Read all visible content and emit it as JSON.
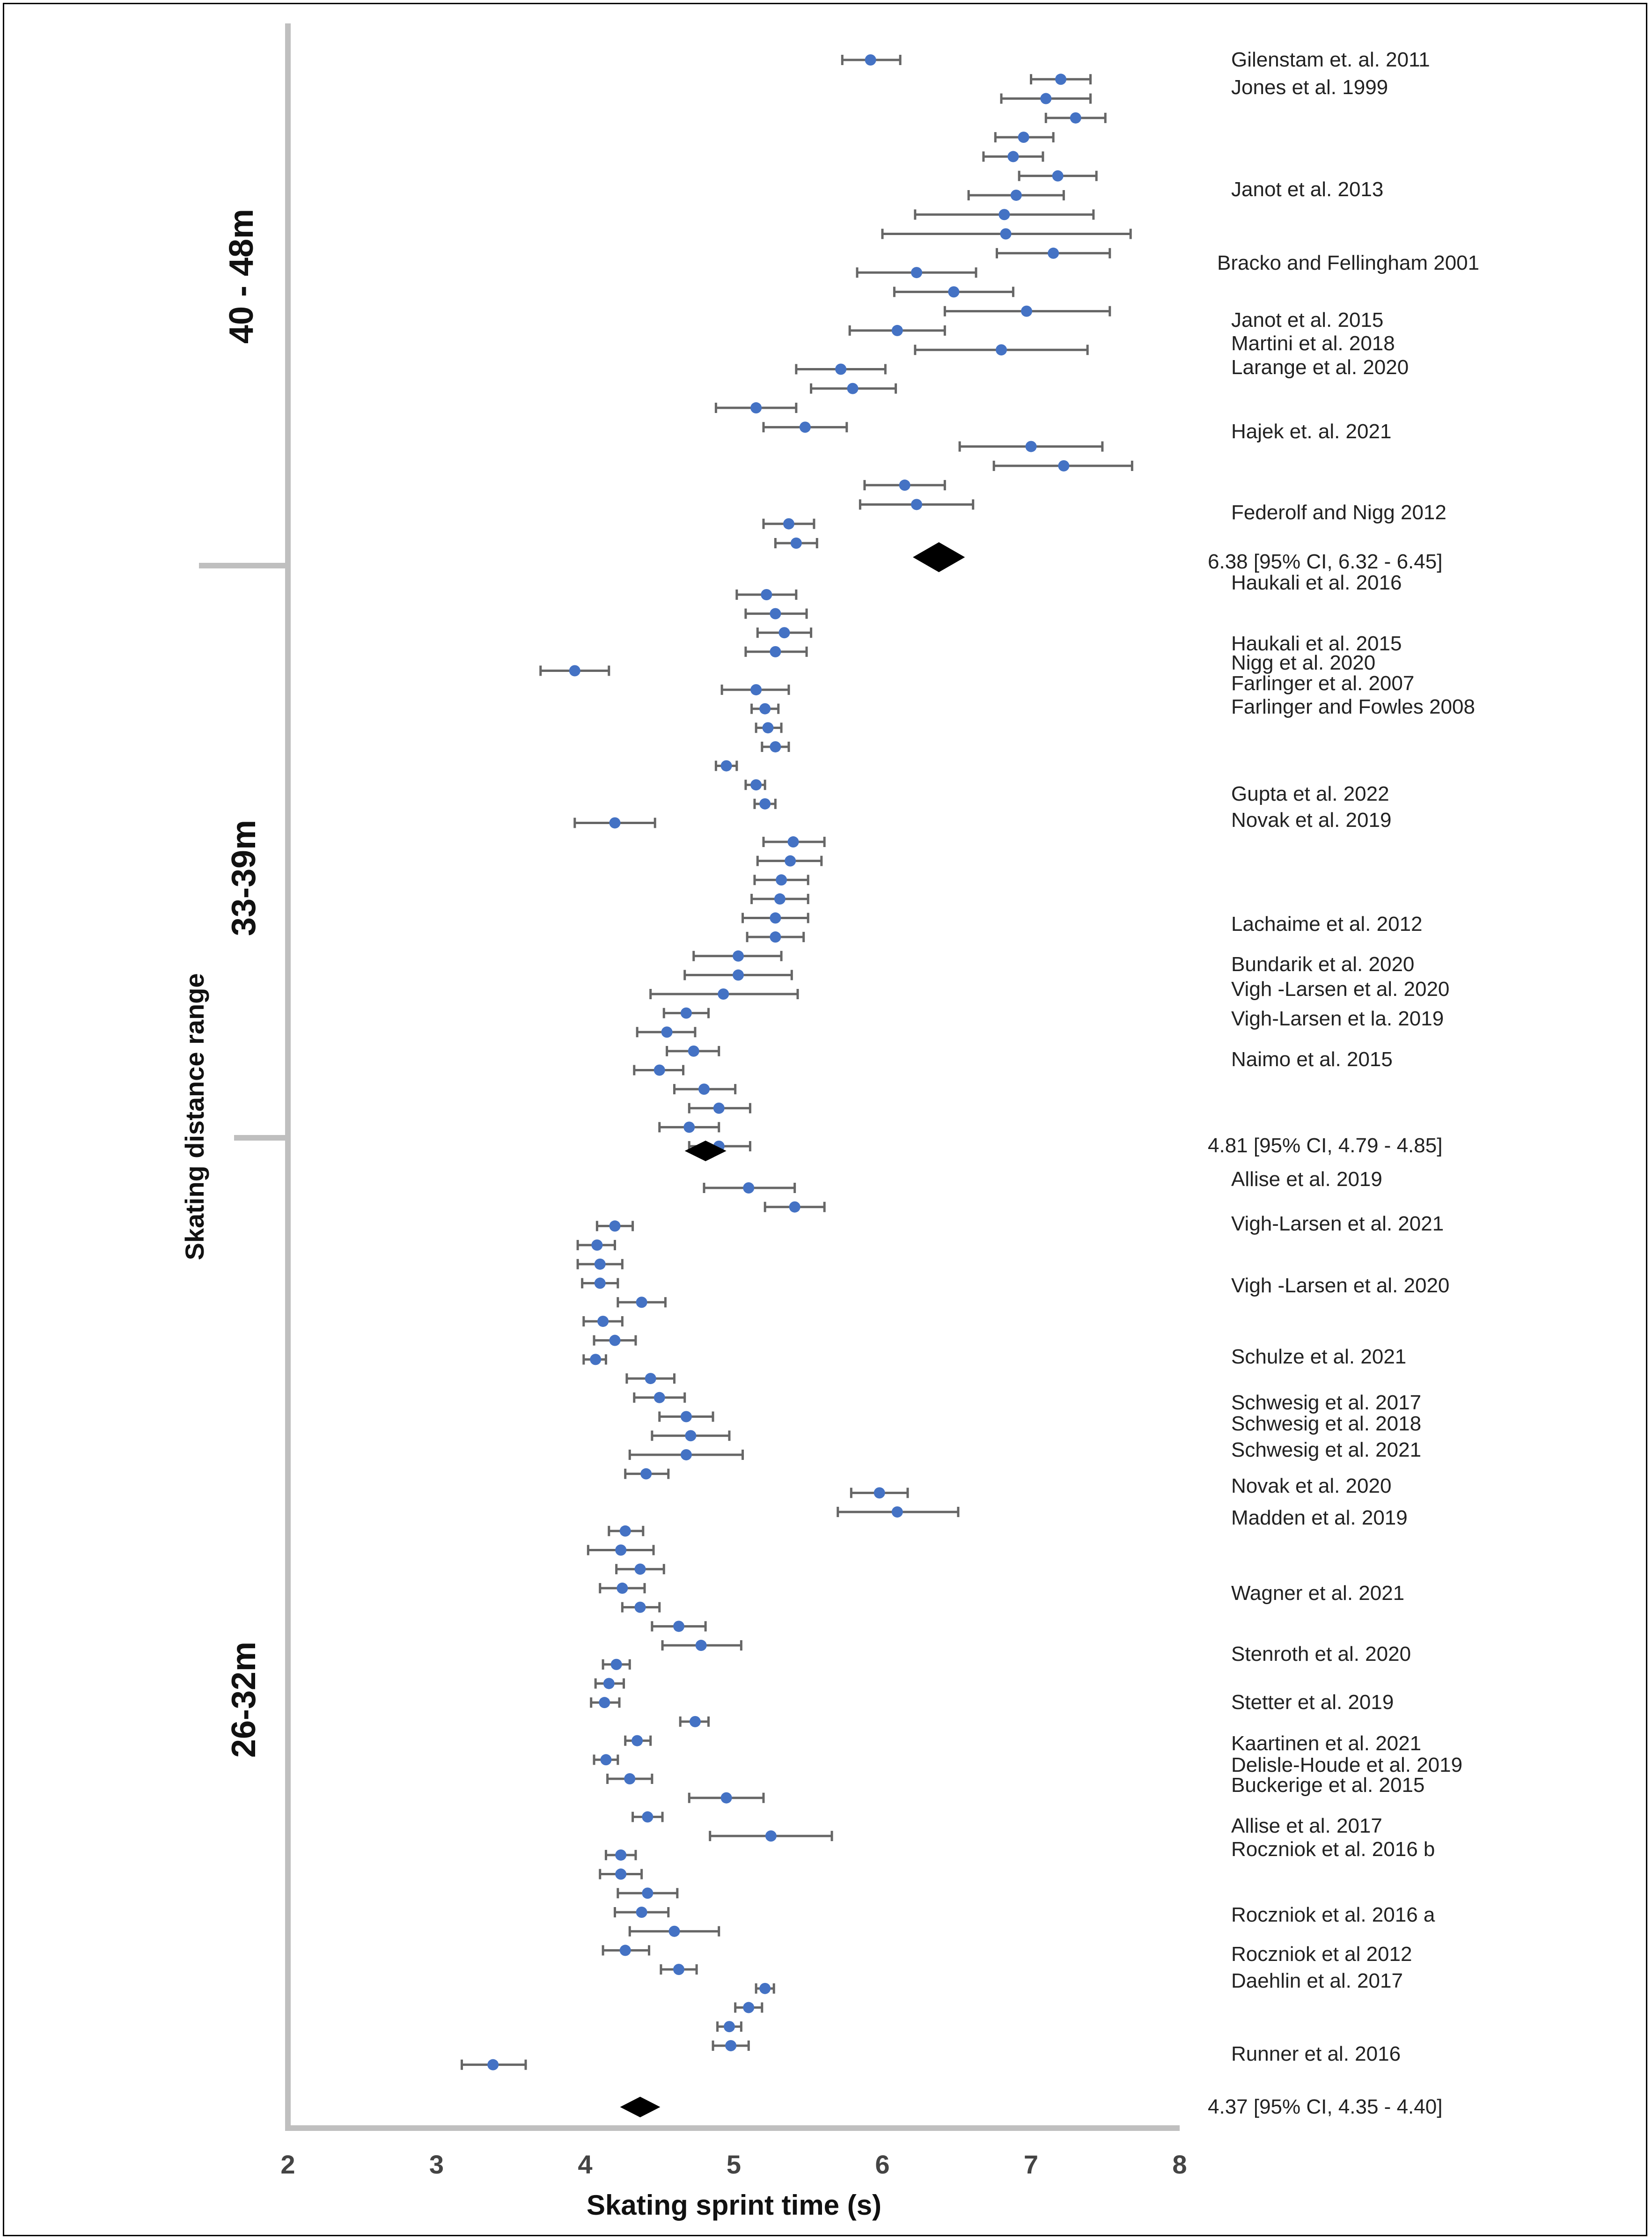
{
  "chart_data": {
    "type": "forest",
    "xlabel": "Skating sprint time (s)",
    "ylabel": "Skating distance range",
    "xlim": [
      2,
      8
    ],
    "x_ticks": [
      "2",
      "3",
      "4",
      "5",
      "6",
      "7",
      "8"
    ],
    "groups": [
      {
        "name": "40 - 48m",
        "points": [
          {
            "est": 5.92,
            "lo": 5.73,
            "hi": 6.12
          },
          {
            "est": 7.2,
            "lo": 7.0,
            "hi": 7.4
          },
          {
            "est": 7.1,
            "lo": 6.8,
            "hi": 7.4
          },
          {
            "est": 7.3,
            "lo": 7.1,
            "hi": 7.5
          },
          {
            "est": 6.95,
            "lo": 6.76,
            "hi": 7.15
          },
          {
            "est": 6.88,
            "lo": 6.68,
            "hi": 7.08
          },
          {
            "est": 7.18,
            "lo": 6.92,
            "hi": 7.44
          },
          {
            "est": 6.9,
            "lo": 6.58,
            "hi": 7.22
          },
          {
            "est": 6.82,
            "lo": 6.22,
            "hi": 7.42
          },
          {
            "est": 6.83,
            "lo": 6.0,
            "hi": 7.67
          },
          {
            "est": 7.15,
            "lo": 6.77,
            "hi": 7.53
          },
          {
            "est": 6.23,
            "lo": 5.83,
            "hi": 6.63
          },
          {
            "est": 6.48,
            "lo": 6.08,
            "hi": 6.88
          },
          {
            "est": 6.97,
            "lo": 6.42,
            "hi": 7.53
          },
          {
            "est": 6.1,
            "lo": 5.78,
            "hi": 6.42
          },
          {
            "est": 6.8,
            "lo": 6.22,
            "hi": 7.38
          },
          {
            "est": 5.72,
            "lo": 5.42,
            "hi": 6.02
          },
          {
            "est": 5.8,
            "lo": 5.52,
            "hi": 6.09
          },
          {
            "est": 5.15,
            "lo": 4.88,
            "hi": 5.42
          },
          {
            "est": 5.48,
            "lo": 5.2,
            "hi": 5.76
          },
          {
            "est": 7.0,
            "lo": 6.52,
            "hi": 7.48
          },
          {
            "est": 7.22,
            "lo": 6.75,
            "hi": 7.68
          },
          {
            "est": 6.15,
            "lo": 5.88,
            "hi": 6.42
          },
          {
            "est": 6.23,
            "lo": 5.85,
            "hi": 6.61
          },
          {
            "est": 5.37,
            "lo": 5.2,
            "hi": 5.54
          },
          {
            "est": 5.42,
            "lo": 5.28,
            "hi": 5.56
          }
        ],
        "pooled": {
          "est": 6.38,
          "lo": 6.32,
          "hi": 6.45,
          "label": "6.38 [95% CI, 6.32 - 6.45]"
        },
        "studies": [
          "Gilenstam et. al. 2011",
          "Jones et  al. 1999",
          "Janot et  al. 2013",
          "Bracko and Fellingham 2001",
          "Janot et  al. 2015",
          "Martini et  al. 2018",
          "Larange et  al. 2020",
          "Hajek et. al. 2021",
          "Federolf and Nigg 2012"
        ]
      },
      {
        "name": "33-39m",
        "points": [
          {
            "est": 5.22,
            "lo": 5.02,
            "hi": 5.42
          },
          {
            "est": 5.28,
            "lo": 5.08,
            "hi": 5.49
          },
          {
            "est": 5.34,
            "lo": 5.16,
            "hi": 5.52
          },
          {
            "est": 5.28,
            "lo": 5.08,
            "hi": 5.49
          },
          {
            "est": 3.93,
            "lo": 3.7,
            "hi": 4.16
          },
          {
            "est": 5.15,
            "lo": 4.92,
            "hi": 5.37
          },
          {
            "est": 5.21,
            "lo": 5.12,
            "hi": 5.3
          },
          {
            "est": 5.23,
            "lo": 5.15,
            "hi": 5.32
          },
          {
            "est": 5.28,
            "lo": 5.19,
            "hi": 5.37
          },
          {
            "est": 4.95,
            "lo": 4.88,
            "hi": 5.02
          },
          {
            "est": 5.15,
            "lo": 5.08,
            "hi": 5.21
          },
          {
            "est": 5.21,
            "lo": 5.14,
            "hi": 5.28
          },
          {
            "est": 4.2,
            "lo": 3.93,
            "hi": 4.47
          },
          {
            "est": 5.4,
            "lo": 5.2,
            "hi": 5.61
          },
          {
            "est": 5.38,
            "lo": 5.16,
            "hi": 5.59
          },
          {
            "est": 5.32,
            "lo": 5.14,
            "hi": 5.5
          },
          {
            "est": 5.31,
            "lo": 5.12,
            "hi": 5.5
          },
          {
            "est": 5.28,
            "lo": 5.06,
            "hi": 5.5
          },
          {
            "est": 5.28,
            "lo": 5.09,
            "hi": 5.47
          },
          {
            "est": 5.03,
            "lo": 4.73,
            "hi": 5.32
          },
          {
            "est": 5.03,
            "lo": 4.67,
            "hi": 5.39
          },
          {
            "est": 4.93,
            "lo": 4.44,
            "hi": 5.43
          },
          {
            "est": 4.68,
            "lo": 4.53,
            "hi": 4.83
          },
          {
            "est": 4.55,
            "lo": 4.35,
            "hi": 4.74
          },
          {
            "est": 4.73,
            "lo": 4.55,
            "hi": 4.9
          },
          {
            "est": 4.5,
            "lo": 4.33,
            "hi": 4.66
          },
          {
            "est": 4.8,
            "lo": 4.6,
            "hi": 5.01
          },
          {
            "est": 4.9,
            "lo": 4.7,
            "hi": 5.11
          },
          {
            "est": 4.7,
            "lo": 4.5,
            "hi": 4.9
          },
          {
            "est": 4.9,
            "lo": 4.7,
            "hi": 5.11
          }
        ],
        "pooled": {
          "est": 4.81,
          "lo": 4.79,
          "hi": 4.85,
          "label": "4.81 [95% CI, 4.79 - 4.85]"
        },
        "studies": [
          "Haukali et  al. 2016",
          "Haukali et  al. 2015",
          "Nigg et  al. 2020",
          "Farlinger et  al. 2007",
          "Farlinger and Fowles 2008",
          "Gupta et al. 2022",
          "Novak et  al. 2019",
          "Lachaime et  al. 2012",
          "Bundarik et  al. 2020",
          "Vigh -Larsen et  al. 2020",
          "Vigh-Larsen et  la. 2019",
          "Naimo et  al. 2015"
        ]
      },
      {
        "name": "26-32m",
        "points": [
          {
            "est": 5.1,
            "lo": 4.8,
            "hi": 5.41
          },
          {
            "est": 5.41,
            "lo": 5.21,
            "hi": 5.61
          },
          {
            "est": 4.2,
            "lo": 4.08,
            "hi": 4.32
          },
          {
            "est": 4.08,
            "lo": 3.95,
            "hi": 4.2
          },
          {
            "est": 4.1,
            "lo": 3.95,
            "hi": 4.25
          },
          {
            "est": 4.1,
            "lo": 3.98,
            "hi": 4.22
          },
          {
            "est": 4.38,
            "lo": 4.22,
            "hi": 4.54
          },
          {
            "est": 4.12,
            "lo": 3.99,
            "hi": 4.25
          },
          {
            "est": 4.2,
            "lo": 4.06,
            "hi": 4.34
          },
          {
            "est": 4.07,
            "lo": 3.99,
            "hi": 4.14
          },
          {
            "est": 4.44,
            "lo": 4.28,
            "hi": 4.6
          },
          {
            "est": 4.5,
            "lo": 4.33,
            "hi": 4.67
          },
          {
            "est": 4.68,
            "lo": 4.5,
            "hi": 4.86
          },
          {
            "est": 4.71,
            "lo": 4.45,
            "hi": 4.97
          },
          {
            "est": 4.68,
            "lo": 4.3,
            "hi": 5.06
          },
          {
            "est": 4.41,
            "lo": 4.27,
            "hi": 4.56
          },
          {
            "est": 5.98,
            "lo": 5.79,
            "hi": 6.17
          },
          {
            "est": 6.1,
            "lo": 5.7,
            "hi": 6.51
          },
          {
            "est": 4.27,
            "lo": 4.16,
            "hi": 4.39
          },
          {
            "est": 4.24,
            "lo": 4.02,
            "hi": 4.46
          },
          {
            "est": 4.37,
            "lo": 4.21,
            "hi": 4.53
          },
          {
            "est": 4.25,
            "lo": 4.1,
            "hi": 4.4
          },
          {
            "est": 4.37,
            "lo": 4.25,
            "hi": 4.5
          },
          {
            "est": 4.63,
            "lo": 4.45,
            "hi": 4.81
          },
          {
            "est": 4.78,
            "lo": 4.52,
            "hi": 5.05
          },
          {
            "est": 4.21,
            "lo": 4.12,
            "hi": 4.3
          },
          {
            "est": 4.16,
            "lo": 4.07,
            "hi": 4.26
          },
          {
            "est": 4.13,
            "lo": 4.04,
            "hi": 4.23
          },
          {
            "est": 4.74,
            "lo": 4.64,
            "hi": 4.83
          },
          {
            "est": 4.35,
            "lo": 4.27,
            "hi": 4.44
          },
          {
            "est": 4.14,
            "lo": 4.06,
            "hi": 4.22
          },
          {
            "est": 4.3,
            "lo": 4.15,
            "hi": 4.45
          },
          {
            "est": 4.95,
            "lo": 4.7,
            "hi": 5.2
          },
          {
            "est": 4.42,
            "lo": 4.32,
            "hi": 4.52
          },
          {
            "est": 5.25,
            "lo": 4.84,
            "hi": 5.66
          },
          {
            "est": 4.24,
            "lo": 4.14,
            "hi": 4.34
          },
          {
            "est": 4.24,
            "lo": 4.1,
            "hi": 4.38
          },
          {
            "est": 4.42,
            "lo": 4.22,
            "hi": 4.62
          },
          {
            "est": 4.38,
            "lo": 4.2,
            "hi": 4.56
          },
          {
            "est": 4.6,
            "lo": 4.3,
            "hi": 4.9
          },
          {
            "est": 4.27,
            "lo": 4.12,
            "hi": 4.43
          },
          {
            "est": 4.63,
            "lo": 4.51,
            "hi": 4.75
          },
          {
            "est": 5.21,
            "lo": 5.15,
            "hi": 5.27
          },
          {
            "est": 5.1,
            "lo": 5.01,
            "hi": 5.19
          },
          {
            "est": 4.97,
            "lo": 4.89,
            "hi": 5.05
          },
          {
            "est": 4.98,
            "lo": 4.86,
            "hi": 5.1
          },
          {
            "est": 3.38,
            "lo": 3.17,
            "hi": 3.6
          }
        ],
        "pooled": {
          "est": 4.37,
          "lo": 4.35,
          "hi": 4.4,
          "label": "4.37 [95% CI, 4.35 - 4.40]"
        },
        "studies": [
          "Allise et  al. 2019",
          "Vigh-Larsen et  al. 2021",
          "Vigh -Larsen et  al. 2020",
          "Schulze et  al. 2021",
          "Schwesig et  al. 2017",
          "Schwesig et  al. 2018",
          "Schwesig et  al. 2021",
          "Novak et  al. 2020",
          "Madden  et  al. 2019",
          "Wagner et  al. 2021",
          "Stenroth et  al. 2020",
          "Stetter et  al. 2019",
          "Kaartinen et  al. 2021",
          "Delisle-Houde et  al. 2019",
          "Buckerige et  al. 2015",
          "Allise et  al.  2017",
          "Roczniok et  al. 2016 b",
          "Roczniok et  al. 2016 a",
          "Roczniok et  al 2012",
          "Daehlin et  al. 2017",
          "Runner et  al. 2016"
        ]
      }
    ]
  }
}
